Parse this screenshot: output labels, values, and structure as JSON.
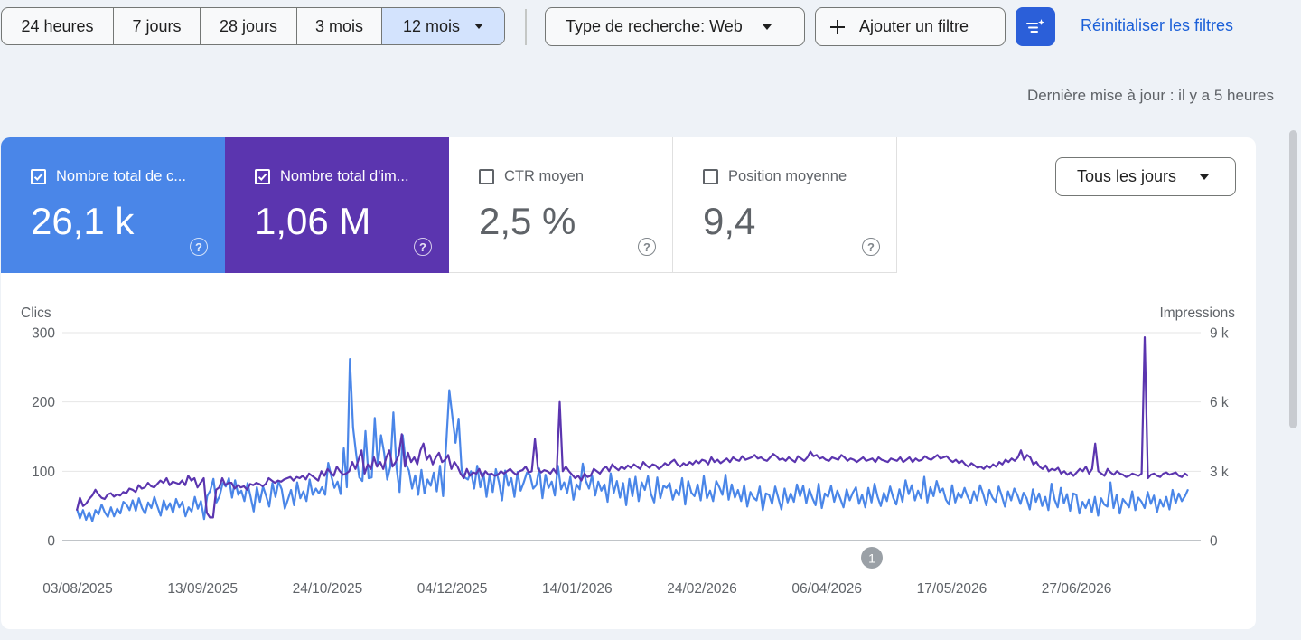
{
  "toolbar": {
    "ranges": [
      {
        "label": "24 heures",
        "selected": false
      },
      {
        "label": "7 jours",
        "selected": false
      },
      {
        "label": "28 jours",
        "selected": false
      },
      {
        "label": "3 mois",
        "selected": false
      },
      {
        "label": "12 mois",
        "selected": true
      }
    ],
    "search_type": "Type de recherche: Web",
    "add_filter": "Ajouter un filtre",
    "reset_filters": "Réinitialiser les filtres"
  },
  "last_update": "Dernière mise à jour : il y a 5 heures",
  "metrics": [
    {
      "label": "Nombre total de c...",
      "value": "26,1 k",
      "checked": true,
      "color": "#4a86e8"
    },
    {
      "label": "Nombre total d'im...",
      "value": "1,06 M",
      "checked": true,
      "color": "#5b35af"
    },
    {
      "label": "CTR moyen",
      "value": "2,5 %",
      "checked": false
    },
    {
      "label": "Position moyenne",
      "value": "9,4",
      "checked": false
    }
  ],
  "granularity": "Tous les jours",
  "chart_data": {
    "type": "line",
    "left_axis_title": "Clics",
    "right_axis_title": "Impressions",
    "left_ticks": [
      "0",
      "100",
      "200",
      "300"
    ],
    "right_ticks": [
      "0",
      "3 k",
      "6 k",
      "9 k"
    ],
    "ylim_left": [
      0,
      300
    ],
    "ylim_right": [
      0,
      9000
    ],
    "x_tick_labels": [
      "03/08/2025",
      "13/09/2025",
      "24/10/2025",
      "04/12/2025",
      "14/01/2026",
      "24/02/2026",
      "06/04/2026",
      "17/05/2026",
      "27/06/2026"
    ],
    "annotation": "1",
    "series": [
      {
        "name": "Clics",
        "axis": "left",
        "color": "#4a86e8",
        "values": [
          46,
          32,
          44,
          30,
          41,
          28,
          44,
          38,
          52,
          41,
          34,
          48,
          35,
          46,
          39,
          56,
          52,
          44,
          58,
          43,
          61,
          47,
          39,
          55,
          47,
          63,
          49,
          36,
          58,
          45,
          54,
          40,
          60,
          48,
          56,
          35,
          48,
          42,
          63,
          46,
          57,
          31,
          64,
          72,
          89,
          55,
          64,
          83,
          78,
          90,
          62,
          87,
          66,
          72,
          57,
          83,
          63,
          42,
          77,
          56,
          78,
          64,
          49,
          83,
          63,
          85,
          74,
          46,
          59,
          73,
          51,
          84,
          61,
          71,
          57,
          88,
          66,
          75,
          68,
          77,
          66,
          112,
          93,
          76,
          85,
          67,
          133,
          77,
          262,
          163,
          125,
          91,
          86,
          158,
          90,
          91,
          177,
          108,
          152,
          127,
          88,
          106,
          185,
          105,
          70,
          152,
          111,
          101,
          75,
          94,
          66,
          102,
          68,
          88,
          79,
          98,
          71,
          108,
          64,
          140,
          217,
          179,
          141,
          176,
          101,
          91,
          88,
          100,
          75,
          108,
          77,
          97,
          63,
          96,
          70,
          103,
          84,
          58,
          101,
          79,
          90,
          63,
          99,
          72,
          84,
          98,
          95,
          75,
          80,
          104,
          61,
          95,
          76,
          85,
          65,
          108,
          74,
          84,
          69,
          92,
          59,
          81,
          74,
          111,
          86,
          75,
          94,
          65,
          85,
          72,
          81,
          56,
          97,
          69,
          86,
          62,
          83,
          51,
          89,
          64,
          92,
          57,
          84,
          73,
          93,
          67,
          55,
          91,
          61,
          79,
          76,
          83,
          59,
          73,
          65,
          90,
          52,
          86,
          69,
          64,
          81,
          58,
          93,
          61,
          72,
          57,
          86,
          77,
          66,
          95,
          59,
          81,
          62,
          73,
          57,
          80,
          49,
          70,
          62,
          58,
          78,
          44,
          68,
          66,
          53,
          78,
          61,
          45,
          75,
          55,
          68,
          56,
          81,
          64,
          79,
          54,
          74,
          61,
          51,
          82,
          47,
          68,
          63,
          79,
          56,
          72,
          60,
          48,
          74,
          58,
          69,
          77,
          53,
          66,
          48,
          76,
          55,
          82,
          63,
          50,
          69,
          57,
          78,
          62,
          52,
          74,
          56,
          87,
          67,
          80,
          58,
          72,
          61,
          92,
          55,
          77,
          64,
          86,
          70,
          75,
          59,
          52,
          80,
          55,
          69,
          62,
          76,
          63,
          54,
          71,
          58,
          80,
          67,
          51,
          73,
          62,
          56,
          78,
          64,
          49,
          71,
          58,
          75,
          66,
          53,
          69,
          61,
          45,
          74,
          56,
          68,
          50,
          63,
          44,
          82,
          59,
          48,
          76,
          54,
          67,
          43,
          68,
          66,
          39,
          56,
          47,
          59,
          41,
          63,
          36,
          61,
          52,
          49,
          84,
          47,
          66,
          39,
          60,
          54,
          48,
          71,
          44,
          62,
          56,
          47,
          70,
          53,
          65,
          41,
          59,
          49,
          63,
          45,
          73,
          54,
          68,
          57,
          64,
          74
        ]
      },
      {
        "name": "Impressions",
        "axis": "right",
        "color": "#5b35af",
        "values": [
          1300,
          1850,
          1500,
          1600,
          1800,
          1950,
          2200,
          2000,
          1850,
          1800,
          2000,
          2050,
          1900,
          2000,
          1950,
          2100,
          2050,
          2250,
          2200,
          2100,
          2400,
          2250,
          2300,
          2500,
          2350,
          2300,
          2450,
          2600,
          2500,
          2700,
          2400,
          2550,
          2500,
          2450,
          2600,
          2400,
          2800,
          2600,
          2700,
          2300,
          2500,
          2700,
          1200,
          1000,
          1000,
          2200,
          2300,
          2700,
          2400,
          2500,
          2500,
          2250,
          2400,
          2300,
          2350,
          2200,
          2450,
          2400,
          2500,
          2450,
          2350,
          2450,
          2700,
          2600,
          2500,
          2600,
          2550,
          2650,
          2700,
          2750,
          2600,
          2750,
          2700,
          2800,
          2650,
          2900,
          2800,
          2700,
          2600,
          3000,
          2800,
          3100,
          2950,
          2800,
          3200,
          3000,
          2850,
          2900,
          3000,
          3400,
          3100,
          3500,
          3900,
          2900,
          3300,
          3100,
          3600,
          3200,
          3400,
          3100,
          3600,
          3900,
          3200,
          3400,
          3700,
          4600,
          3200,
          3800,
          3400,
          3600,
          3300,
          3900,
          4200,
          3500,
          3700,
          3300,
          3600,
          3800,
          3400,
          3500,
          3700,
          3100,
          3400,
          3200,
          2900,
          2700,
          3100,
          2800,
          2950,
          2900,
          3100,
          2750,
          3000,
          2850,
          2900,
          2800,
          2850,
          3000,
          2900,
          3000,
          3100,
          2950,
          2850,
          3000,
          3050,
          3200,
          2950,
          3000,
          4400,
          3100,
          2950,
          3050,
          3000,
          2900,
          3100,
          2900,
          6000,
          3000,
          3200,
          3000,
          2850,
          2700,
          2800,
          2600,
          2900,
          2750,
          2800,
          3100,
          3000,
          2900,
          3100,
          3200,
          3000,
          3300,
          3150,
          3050,
          3200,
          3100,
          3250,
          3150,
          3300,
          3200,
          3100,
          3400,
          3250,
          3150,
          3300,
          3250,
          3100,
          3200,
          3350,
          3250,
          3400,
          3500,
          3300,
          3200,
          3350,
          3250,
          3400,
          3300,
          3450,
          3350,
          3500,
          3450,
          3300,
          3600,
          3400,
          3500,
          3350,
          3450,
          3550,
          3400,
          3600,
          3500,
          3450,
          3650,
          3500,
          3550,
          3600,
          3700,
          3550,
          3600,
          3500,
          3450,
          3600,
          3750,
          3650,
          3500,
          3550,
          3450,
          3600,
          3500,
          3400,
          3650,
          3550,
          3450,
          3600,
          3850,
          3650,
          3700,
          3550,
          3600,
          3500,
          3450,
          3600,
          3550,
          3500,
          3700,
          3600,
          3450,
          3550,
          3500,
          3400,
          3500,
          3600,
          3450,
          3500,
          3550,
          3400,
          3600,
          3500,
          3450,
          3400,
          3550,
          3500,
          3450,
          3600,
          3400,
          3500,
          3600,
          3400,
          3550,
          3450,
          3500,
          3650,
          3550,
          3500,
          3600,
          3700,
          3550,
          3600,
          3650,
          3500,
          3400,
          3500,
          3350,
          3450,
          3300,
          3200,
          3350,
          3250,
          3150,
          3200,
          3100,
          3250,
          3150,
          3300,
          3200,
          3400,
          3300,
          3500,
          3400,
          3550,
          3450,
          3600,
          3900,
          3500,
          3700,
          3600,
          3300,
          3400,
          3200,
          3100,
          3250,
          3000,
          3100,
          3050,
          3150,
          2900,
          3000,
          2850,
          2950,
          2800,
          2950,
          3100,
          3000,
          3200,
          2900,
          3100,
          4200,
          3000,
          2900,
          2800,
          3100,
          2950,
          2850,
          3000,
          2900,
          2850,
          2750,
          2800,
          2900,
          2850,
          2800,
          2900,
          8800,
          2700,
          2850,
          2900,
          2800,
          2750,
          2900,
          2950,
          2850,
          2900,
          2950,
          2800,
          2750,
          2900,
          2800
        ]
      }
    ]
  }
}
